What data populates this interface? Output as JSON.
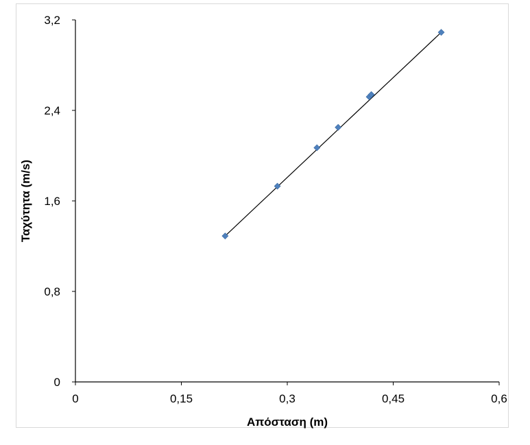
{
  "chart_data": {
    "type": "scatter",
    "title": "",
    "xlabel": "Απόσταση (m)",
    "ylabel": "Ταχύτητα (m/s)",
    "xlim": [
      0,
      0.6
    ],
    "ylim": [
      0,
      3.2
    ],
    "x_ticks": [
      0,
      0.15,
      0.3,
      0.45,
      0.6
    ],
    "x_tick_labels": [
      "0",
      "0,15",
      "0,3",
      "0,45",
      "0,6"
    ],
    "y_ticks": [
      0,
      0.8,
      1.6,
      2.4,
      3.2
    ],
    "y_tick_labels": [
      "0",
      "0,8",
      "1,6",
      "2,4",
      "3,2"
    ],
    "grid": false,
    "legend": "none",
    "marker_color": "#4f81bd",
    "trendline": {
      "type": "linear",
      "color": "#000000",
      "x": [
        0.212,
        0.518
      ],
      "y": [
        1.29,
        3.09
      ]
    },
    "series": [
      {
        "x": [
          0.212,
          0.286,
          0.342,
          0.372,
          0.416,
          0.419,
          0.518
        ],
        "y": [
          1.29,
          1.73,
          2.07,
          2.25,
          2.52,
          2.54,
          3.09
        ]
      }
    ]
  }
}
